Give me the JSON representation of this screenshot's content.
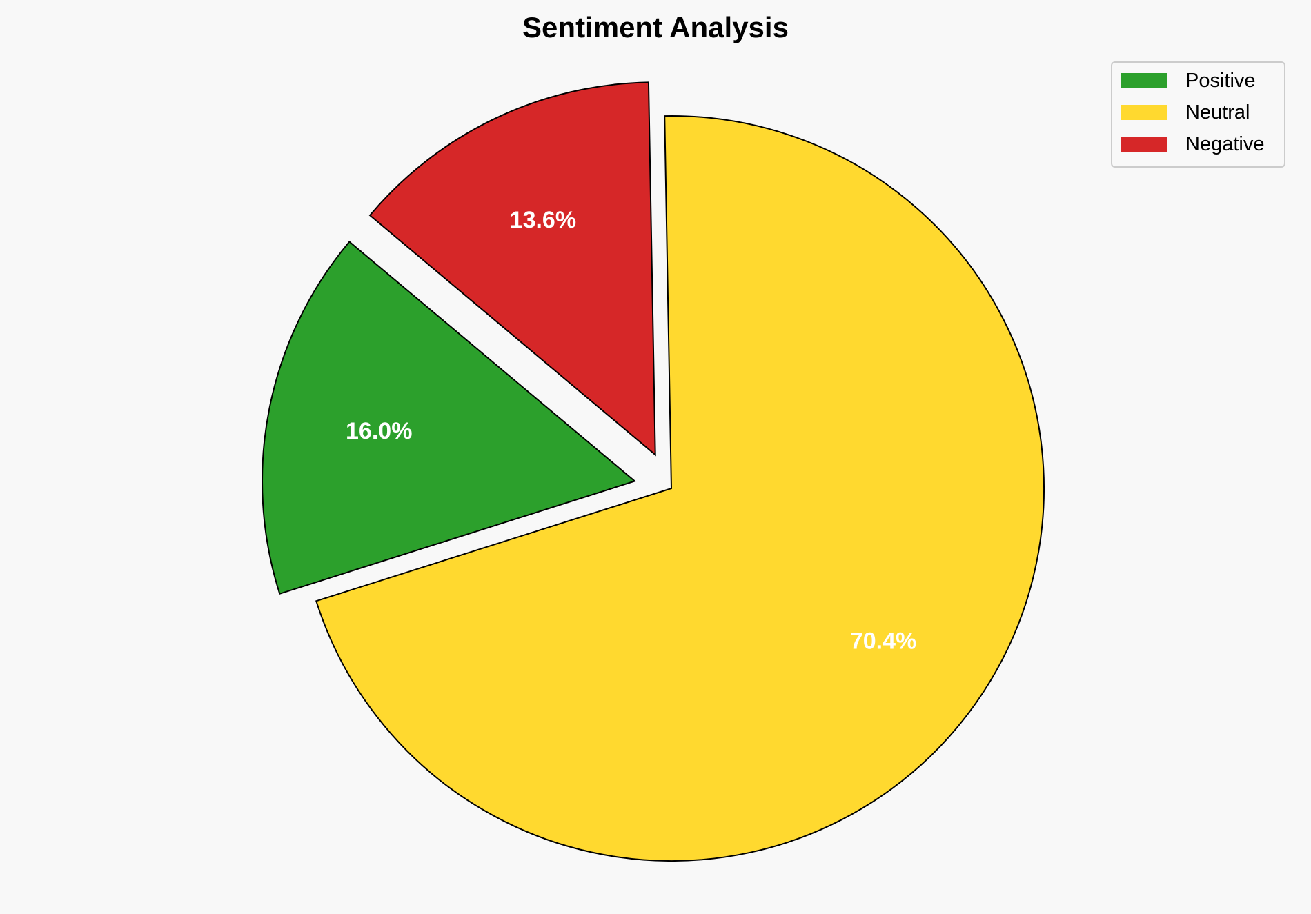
{
  "chart_data": {
    "type": "pie",
    "title": "Sentiment Analysis",
    "categories": [
      "Positive",
      "Neutral",
      "Negative"
    ],
    "values": [
      16.0,
      70.4,
      13.6
    ],
    "labels": [
      "16.0%",
      "70.4%",
      "13.6%"
    ],
    "colors": [
      "#2ca02c",
      "#ffd92f",
      "#d62728"
    ],
    "explode": [
      0.1,
      0,
      0.1
    ],
    "startangle": 140,
    "direction": "counterclockwise",
    "legend": {
      "placement": "top-right",
      "entries": [
        "Positive",
        "Neutral",
        "Negative"
      ]
    },
    "edge_color": "#000000",
    "label_color": "#ffffff",
    "background": "#f8f8f8"
  }
}
